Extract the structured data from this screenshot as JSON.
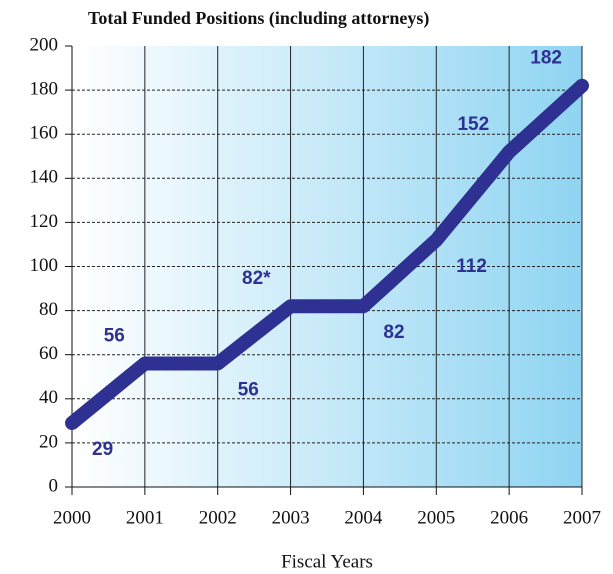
{
  "chart_data": {
    "type": "line",
    "title": "Total Funded Positions (including attorneys)",
    "x_label": "Fiscal Years",
    "x": [
      2000,
      2001,
      2002,
      2003,
      2004,
      2005,
      2006,
      2007
    ],
    "series": [
      {
        "name": "Total Funded Positions",
        "color": "#2e3192",
        "values": [
          29,
          56,
          56,
          82,
          82,
          112,
          152,
          182
        ],
        "value_labels": [
          "29",
          "56",
          "56",
          "82*",
          "82",
          "112",
          "152",
          "182"
        ]
      }
    ],
    "xlim": [
      2000,
      2007
    ],
    "xticks": [
      2000,
      2001,
      2002,
      2003,
      2004,
      2005,
      2006,
      2007
    ],
    "ylim": [
      0,
      200
    ],
    "yticks": [
      0,
      20,
      40,
      60,
      80,
      100,
      120,
      140,
      160,
      180,
      200
    ],
    "grid": true
  }
}
